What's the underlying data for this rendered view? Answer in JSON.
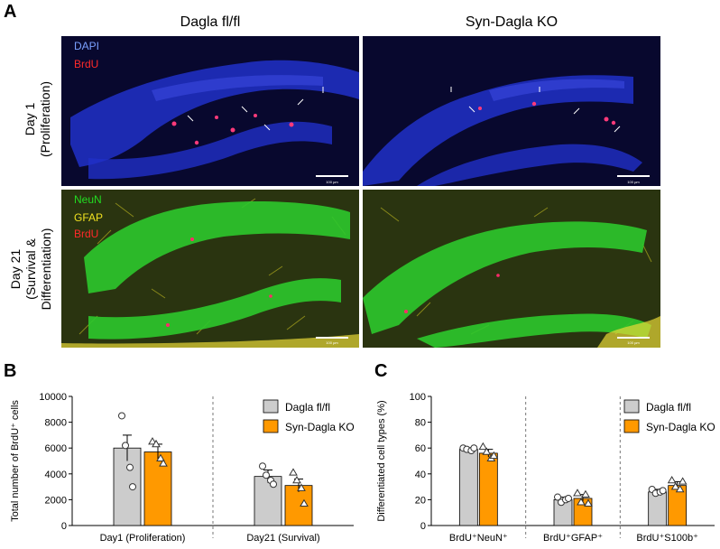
{
  "panel_a": {
    "letter": "A",
    "columns": [
      "Dagla fl/fl",
      "Syn-Dagla KO"
    ],
    "rows": [
      {
        "line1": "Day 1",
        "line2": "(Proliferation)",
        "line3": ""
      },
      {
        "line1": "Day 21",
        "line2": "(Survival &",
        "line3": "Differentiation)"
      }
    ],
    "row1_channels": [
      {
        "name": "DAPI",
        "color": "#7aa0ff"
      },
      {
        "name": "BrdU",
        "color": "#ff2a2a"
      }
    ],
    "row2_channels": [
      {
        "name": "NeuN",
        "color": "#22dd22"
      },
      {
        "name": "GFAP",
        "color": "#f0e020"
      },
      {
        "name": "BrdU",
        "color": "#ff2a2a"
      }
    ],
    "scalebar_labels": [
      "100 µm",
      "100 µm",
      "100 µm",
      "100 µm"
    ],
    "colors": {
      "dapi_bg": "#1a1aa0",
      "neun": "#2cc82c",
      "gfap": "#e8d838",
      "brdu": "#ff2a6a",
      "tissue_bg": "#2a3410"
    }
  },
  "chart_data": [
    {
      "letter": "B",
      "type": "bar",
      "title": "",
      "xlabel": "",
      "ylabel": "Total number of BrdU⁺ cells",
      "ylim": [
        0,
        10000
      ],
      "yticks": [
        0,
        2000,
        4000,
        6000,
        8000,
        10000
      ],
      "categories": [
        "Day1 (Proliferation)",
        "Day21 (Survival)"
      ],
      "series": [
        {
          "name": "Dagla fl/fl",
          "color": "#cccccc",
          "marker": "circle",
          "values": [
            6000,
            3800
          ],
          "sem": [
            1000,
            500
          ],
          "points": [
            [
              8500,
              6200,
              4500,
              3000
            ],
            [
              4600,
              3900,
              3500,
              3200
            ]
          ]
        },
        {
          "name": "Syn-Dagla KO",
          "color": "#ff9900",
          "marker": "triangle",
          "values": [
            5700,
            3100
          ],
          "sem": [
            600,
            500
          ],
          "points": [
            [
              6500,
              6300,
              5200,
              4800
            ],
            [
              4100,
              3500,
              2900,
              1700
            ]
          ]
        }
      ],
      "grid": false,
      "legend": "top-right"
    },
    {
      "letter": "C",
      "type": "bar",
      "title": "",
      "xlabel": "",
      "ylabel": "Differentiated cell types (%)",
      "ylim": [
        0,
        100
      ],
      "yticks": [
        0,
        20,
        40,
        60,
        80,
        100
      ],
      "categories": [
        "BrdU⁺NeuN⁺",
        "BrdU⁺GFAP⁺",
        "BrdU⁺S100b⁺"
      ],
      "series": [
        {
          "name": "Dagla fl/fl",
          "color": "#cccccc",
          "marker": "circle",
          "values": [
            59,
            20,
            26
          ],
          "sem": [
            1,
            2,
            2
          ],
          "points": [
            [
              60,
              59,
              58,
              60
            ],
            [
              22,
              18,
              20,
              21
            ],
            [
              28,
              25,
              26,
              27
            ]
          ]
        },
        {
          "name": "Syn-Dagla KO",
          "color": "#ff9900",
          "marker": "triangle",
          "values": [
            56,
            21,
            31
          ],
          "sem": [
            3,
            3,
            3
          ],
          "points": [
            [
              61,
              57,
              52,
              54
            ],
            [
              25,
              18,
              24,
              17
            ],
            [
              35,
              30,
              28,
              34
            ]
          ]
        }
      ],
      "grid": false,
      "legend": "top-right"
    }
  ]
}
